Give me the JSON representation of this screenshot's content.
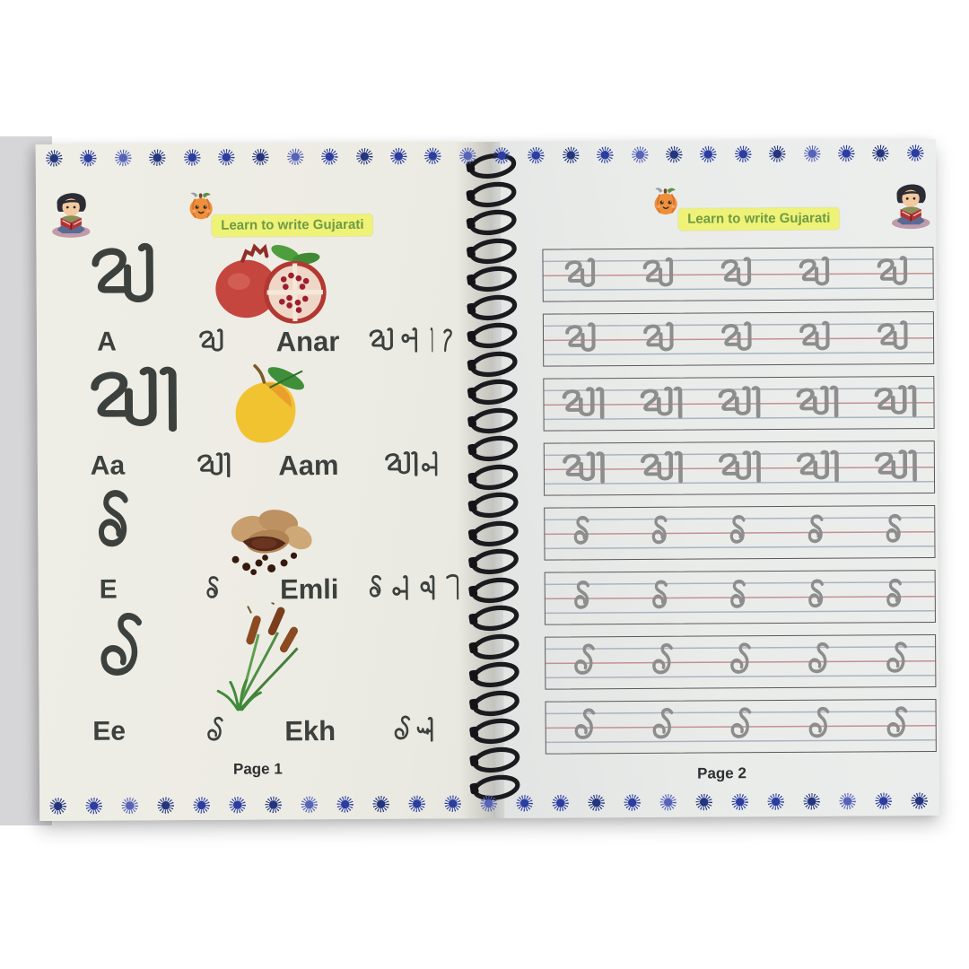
{
  "banner": {
    "text": "Learn to write Gujarati"
  },
  "left_page": {
    "footer": "Page 1",
    "rows": [
      {
        "big_letter": "અ",
        "english_letter": "A",
        "gujarati_letter": "અ",
        "english_word": "Anar",
        "gujarati_word": "અનાર",
        "image": "pomegranate"
      },
      {
        "big_letter": "આ",
        "english_letter": "Aa",
        "gujarati_letter": "આ",
        "english_word": "Aam",
        "gujarati_word": "આમ",
        "image": "mango"
      },
      {
        "big_letter": "ઇ",
        "english_letter": "E",
        "gujarati_letter": "ઇ",
        "english_word": "Emli",
        "gujarati_word": "ઇમલી",
        "image": "tamarind"
      },
      {
        "big_letter": "ઈ",
        "english_letter": "Ee",
        "gujarati_letter": "ઈ",
        "english_word": "Ekh",
        "gujarati_word": "ઈખ",
        "image": "cattail-reeds"
      }
    ]
  },
  "right_page": {
    "footer": "Page 2",
    "practice_rows": [
      {
        "letter": "અ",
        "repeat": 5
      },
      {
        "letter": "અ",
        "repeat": 5
      },
      {
        "letter": "આ",
        "repeat": 5
      },
      {
        "letter": "આ",
        "repeat": 5
      },
      {
        "letter": "ઇ",
        "repeat": 5
      },
      {
        "letter": "ઇ",
        "repeat": 5
      },
      {
        "letter": "ઈ",
        "repeat": 5
      },
      {
        "letter": "ઈ",
        "repeat": 5
      }
    ]
  },
  "colors": {
    "star_blue": "#2b3da0",
    "banner_yellow": "#eef276",
    "banner_green": "#6f9a45",
    "ink": "#3c413e",
    "trace_gray": "#8d8d8d",
    "guide_blue": "#a8b4c0",
    "guide_red": "#c49191"
  }
}
